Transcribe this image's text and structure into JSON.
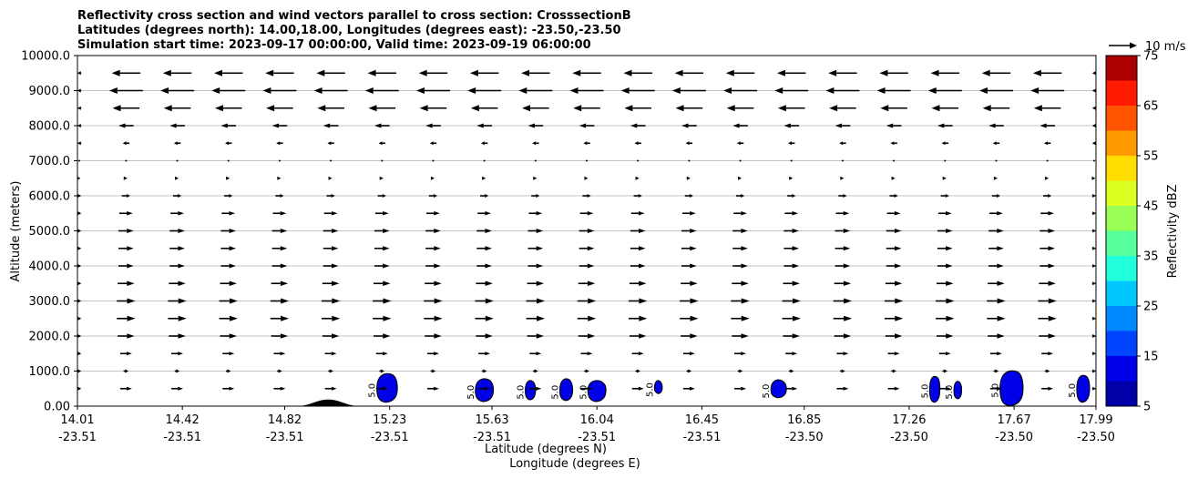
{
  "chart_data": {
    "type": "cross-section",
    "title_lines": [
      "Reflectivity cross section and wind vectors parallel to cross section: CrosssectionB",
      "Latitudes (degrees north): 14.00,18.00, Longitudes (degrees east): -23.50,-23.50",
      "Simulation start time: 2023-09-17 00:00:00, Valid time: 2023-09-19 06:00:00"
    ],
    "xlabel_lat": "Latitude (degrees N)",
    "xlabel_lon": "Longitude (degrees E)",
    "ylabel": "Altitude (meters)",
    "xlim": [
      14.01,
      17.99
    ],
    "ylim": [
      0,
      10000
    ],
    "x_ticks": [
      {
        "lat": "14.01",
        "lon": "-23.51",
        "value": 14.01
      },
      {
        "lat": "14.42",
        "lon": "-23.51",
        "value": 14.42
      },
      {
        "lat": "14.82",
        "lon": "-23.51",
        "value": 14.82
      },
      {
        "lat": "15.23",
        "lon": "-23.51",
        "value": 15.23
      },
      {
        "lat": "15.63",
        "lon": "-23.51",
        "value": 15.63
      },
      {
        "lat": "16.04",
        "lon": "-23.51",
        "value": 16.04
      },
      {
        "lat": "16.45",
        "lon": "-23.51",
        "value": 16.45
      },
      {
        "lat": "16.85",
        "lon": "-23.50",
        "value": 16.85
      },
      {
        "lat": "17.26",
        "lon": "-23.50",
        "value": 17.26
      },
      {
        "lat": "17.67",
        "lon": "-23.50",
        "value": 17.67
      },
      {
        "lat": "17.99",
        "lon": "-23.50",
        "value": 17.99
      }
    ],
    "y_ticks": [
      {
        "label": "0.00",
        "value": 0
      },
      {
        "label": "1000.0",
        "value": 1000
      },
      {
        "label": "2000.0",
        "value": 2000
      },
      {
        "label": "3000.0",
        "value": 3000
      },
      {
        "label": "4000.0",
        "value": 4000
      },
      {
        "label": "5000.0",
        "value": 5000
      },
      {
        "label": "6000.0",
        "value": 6000
      },
      {
        "label": "7000.0",
        "value": 7000
      },
      {
        "label": "8000.0",
        "value": 8000
      },
      {
        "label": "9000.0",
        "value": 9000
      },
      {
        "label": "10000.0",
        "value": 10000
      }
    ],
    "grid": true,
    "wind_key": {
      "label": "10 m/s",
      "speed": 10
    },
    "wind_x_lats": [
      14.2,
      14.4,
      14.6,
      14.8,
      15.0,
      15.2,
      15.4,
      15.6,
      15.8,
      16.0,
      16.2,
      16.4,
      16.6,
      16.8,
      17.0,
      17.2,
      17.4,
      17.6,
      17.8
    ],
    "wind_profile": [
      {
        "alt": 500,
        "u": 3.5
      },
      {
        "alt": 1000,
        "u": 1.5
      },
      {
        "alt": 1500,
        "u": 3.5
      },
      {
        "alt": 2000,
        "u": 5.0
      },
      {
        "alt": 2500,
        "u": 5.5
      },
      {
        "alt": 3000,
        "u": 5.5
      },
      {
        "alt": 3500,
        "u": 5.0
      },
      {
        "alt": 4000,
        "u": 4.5
      },
      {
        "alt": 4500,
        "u": 4.5
      },
      {
        "alt": 5000,
        "u": 4.5
      },
      {
        "alt": 5500,
        "u": 4.0
      },
      {
        "alt": 6000,
        "u": 2.5
      },
      {
        "alt": 6500,
        "u": 0.8
      },
      {
        "alt": 7000,
        "u": -0.5
      },
      {
        "alt": 7500,
        "u": -2.0
      },
      {
        "alt": 8000,
        "u": -4.5
      },
      {
        "alt": 8500,
        "u": -8.0
      },
      {
        "alt": 9000,
        "u": -10.0
      },
      {
        "alt": 9500,
        "u": -8.5
      }
    ],
    "terrain": {
      "center_lat": 14.99,
      "half_width": 0.12,
      "max_alt": 190
    },
    "colorbar": {
      "label": "Reflectivity dBZ",
      "levels": [
        5,
        10,
        15,
        20,
        25,
        30,
        35,
        40,
        45,
        50,
        55,
        60,
        65,
        70,
        75
      ],
      "tick_labels": [
        "5",
        "15",
        "25",
        "35",
        "45",
        "55",
        "65",
        "75"
      ],
      "colors": [
        "#0000a8",
        "#0000e8",
        "#0044ff",
        "#0088ff",
        "#00c8ff",
        "#22ffdd",
        "#55ff99",
        "#99ff55",
        "#ddff22",
        "#ffdd00",
        "#ff9900",
        "#ff5500",
        "#ff1a00",
        "#aa0000"
      ]
    },
    "echoes": [
      {
        "lat": 15.22,
        "alt": 500,
        "width_deg": 0.08,
        "top": 900,
        "bottom": 130,
        "label": "5.0"
      },
      {
        "lat": 15.6,
        "alt": 450,
        "width_deg": 0.07,
        "top": 750,
        "bottom": 150,
        "label": "5.0"
      },
      {
        "lat": 15.78,
        "alt": 450,
        "width_deg": 0.04,
        "top": 700,
        "bottom": 200,
        "label": "5.0"
      },
      {
        "lat": 15.92,
        "alt": 450,
        "width_deg": 0.05,
        "top": 750,
        "bottom": 180,
        "label": "5.0"
      },
      {
        "lat": 16.04,
        "alt": 450,
        "width_deg": 0.07,
        "top": 700,
        "bottom": 150,
        "label": "5.0"
      },
      {
        "lat": 16.28,
        "alt": 520,
        "width_deg": 0.03,
        "top": 700,
        "bottom": 380,
        "label": "5.0"
      },
      {
        "lat": 16.75,
        "alt": 480,
        "width_deg": 0.06,
        "top": 720,
        "bottom": 260,
        "label": "5.0"
      },
      {
        "lat": 17.36,
        "alt": 480,
        "width_deg": 0.04,
        "top": 820,
        "bottom": 130,
        "label": "5.0"
      },
      {
        "lat": 17.45,
        "alt": 450,
        "width_deg": 0.03,
        "top": 680,
        "bottom": 230,
        "label": "5.0"
      },
      {
        "lat": 17.66,
        "alt": 500,
        "width_deg": 0.09,
        "top": 980,
        "bottom": 30,
        "label": "5.0"
      },
      {
        "lat": 17.94,
        "alt": 500,
        "width_deg": 0.05,
        "top": 850,
        "bottom": 130,
        "label": "5.0"
      }
    ]
  }
}
